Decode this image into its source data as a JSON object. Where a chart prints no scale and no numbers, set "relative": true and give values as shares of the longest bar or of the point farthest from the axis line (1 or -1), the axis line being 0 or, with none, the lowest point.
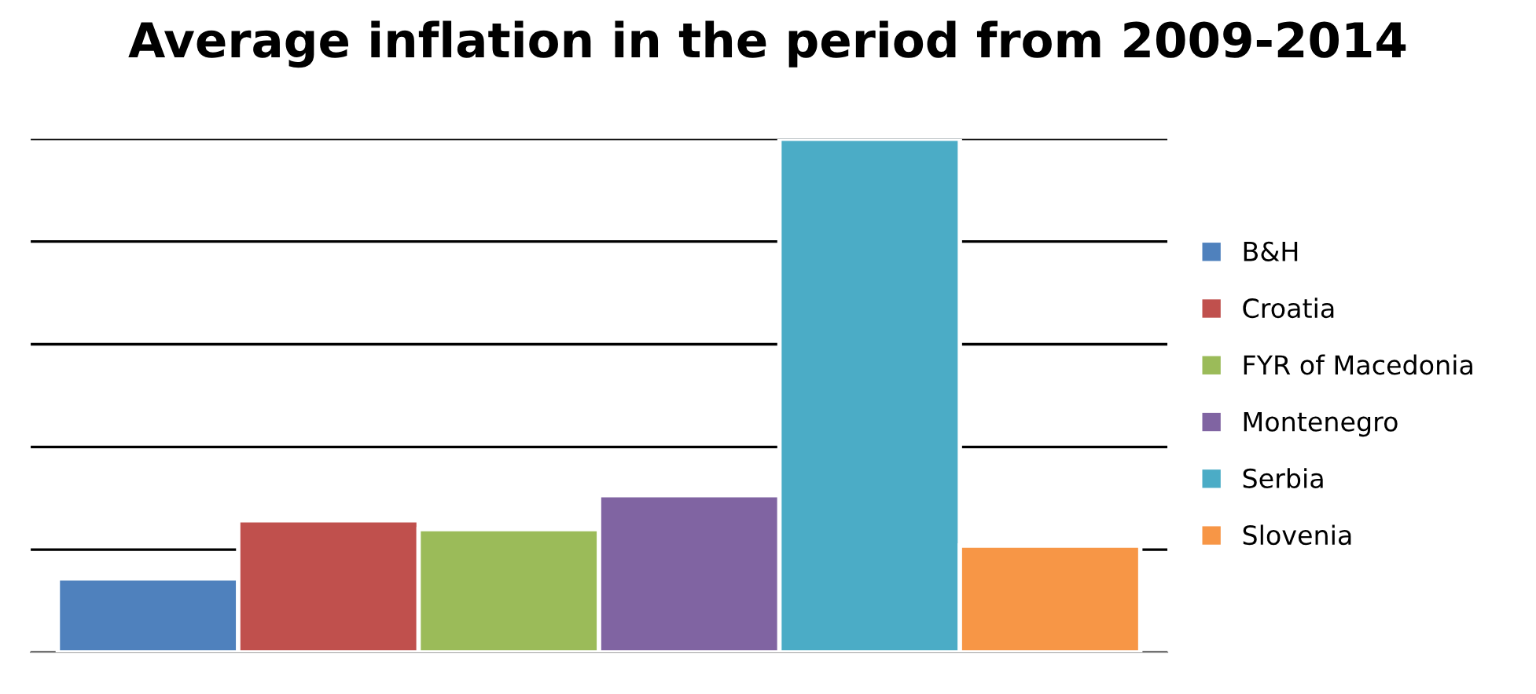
{
  "chart_data": {
    "type": "bar",
    "title": "Average inflation in the period from 2009-2014",
    "relative": true,
    "grid": "y",
    "legend": "right",
    "tick_labels": false,
    "categories": [
      null
    ],
    "series": [
      {
        "name": "B&H",
        "color": "#4f81bd",
        "values": [
          0.144
        ]
      },
      {
        "name": "Croatia",
        "color": "#c0504d",
        "values": [
          0.257
        ]
      },
      {
        "name": "FYR of Macedonia",
        "color": "#9bbb59",
        "values": [
          0.24
        ]
      },
      {
        "name": "Montenegro",
        "color": "#8064a2",
        "values": [
          0.306
        ]
      },
      {
        "name": "Serbia",
        "color": "#4bacc6",
        "values": [
          1
        ]
      },
      {
        "name": "Slovenia",
        "color": "#f79646",
        "values": [
          0.208
        ]
      }
    ]
  }
}
